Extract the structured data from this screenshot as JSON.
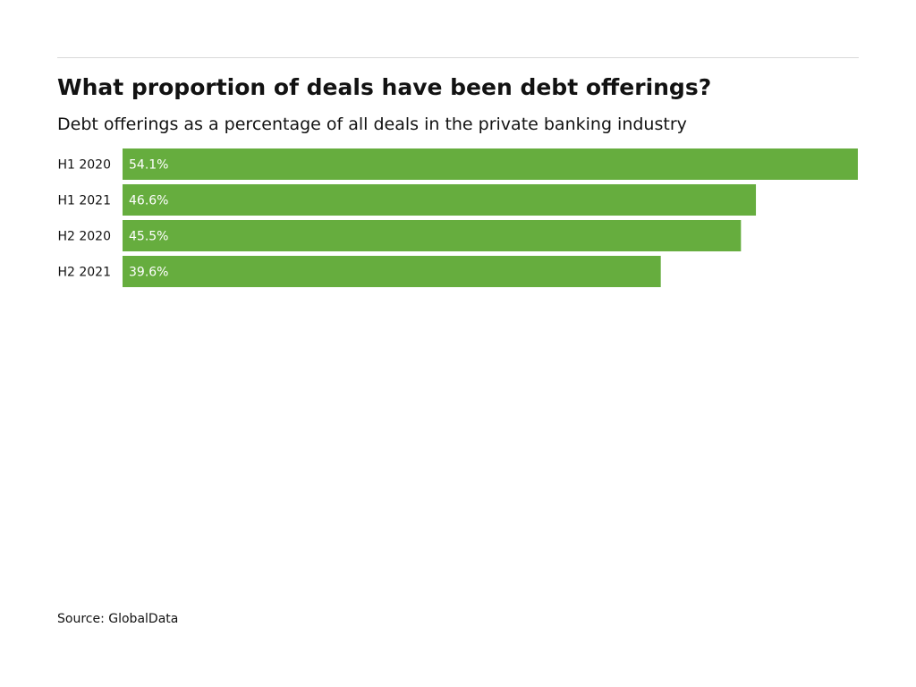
{
  "header": {
    "title": "What proportion of deals have been debt offerings?",
    "subtitle": "Debt offerings as a percentage of all deals in the private banking industry"
  },
  "footer": {
    "source": "Source: GlobalData"
  },
  "colors": {
    "bar": "#66ad3e",
    "bar_label": "#ffffff",
    "category_label": "#121212",
    "rule": "#d9d9d9"
  },
  "chart_data": {
    "type": "bar",
    "orientation": "horizontal",
    "categories": [
      "H1 2020",
      "H1 2021",
      "H2 2020",
      "H2 2021"
    ],
    "values": [
      54.1,
      46.6,
      45.5,
      39.6
    ],
    "value_labels": [
      "54.1%",
      "46.6%",
      "45.5%",
      "39.6%"
    ],
    "unit": "%",
    "xlim": [
      0,
      54.1
    ],
    "grid": false,
    "legend": "none"
  }
}
